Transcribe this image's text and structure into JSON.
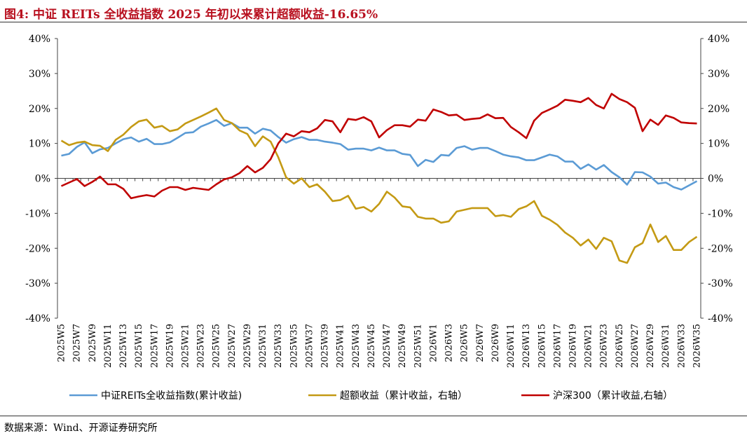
{
  "header": {
    "title": "图4:  中证 REITs 全收益指数 2025 年初以来累计超额收益-16.65%"
  },
  "footer": {
    "source": "数据来源：Wind、开源证券研究所"
  },
  "chart_data": {
    "type": "line",
    "title": "图4:  中证 REITs 全收益指数 2025 年初以来累计超额收益-16.65%",
    "x": [
      "2025W5",
      "2025W6",
      "2025W7",
      "2025W8",
      "2025W9",
      "2025W10",
      "2025W11",
      "2025W12",
      "2025W13",
      "2025W14",
      "2025W15",
      "2025W16",
      "2025W17",
      "2025W18",
      "2025W19",
      "2025W20",
      "2025W21",
      "2025W22",
      "2025W23",
      "2025W24",
      "2025W25",
      "2025W26",
      "2025W27",
      "2025W28",
      "2025W29",
      "2025W30",
      "2025W31",
      "2025W32",
      "2025W33",
      "2025W34",
      "2025W35",
      "2025W36",
      "2025W37",
      "2025W38",
      "2025W39",
      "2025W40",
      "2025W41",
      "2025W42",
      "2025W43",
      "2025W44",
      "2025W45",
      "2025W46",
      "2025W47",
      "2025W48",
      "2025W49",
      "2025W50",
      "2025W51",
      "2025W52",
      "2026W1",
      "2026W2",
      "2026W3",
      "2026W4",
      "2026W5",
      "2026W6",
      "2026W7",
      "2026W8",
      "2026W9",
      "2026W10",
      "2026W11",
      "2026W12",
      "2026W13",
      "2026W14",
      "2026W15",
      "2026W16",
      "2026W17",
      "2026W18",
      "2026W19",
      "2026W20",
      "2026W21",
      "2026W22",
      "2026W23",
      "2026W24",
      "2026W25",
      "2026W26",
      "2026W27",
      "2026W28",
      "2026W29",
      "2026W30",
      "2026W31",
      "2026W32",
      "2026W33",
      "2026W34",
      "2026W35"
    ],
    "x_tick_labels": [
      "2025W5",
      "2025W7",
      "2025W9",
      "2025W11",
      "2025W13",
      "2025W15",
      "2025W17",
      "2025W19",
      "2025W21",
      "2025W23",
      "2025W25",
      "2025W27",
      "2025W29",
      "2025W31",
      "2025W33",
      "2025W35",
      "2025W37",
      "2025W39",
      "2025W41",
      "2025W43",
      "2025W45",
      "2025W47",
      "2025W49",
      "2025W51",
      "2026W1",
      "2026W3",
      "2026W5",
      "2026W7",
      "2026W9",
      "2026W11",
      "2026W13",
      "2026W15",
      "2026W17",
      "2026W19",
      "2026W21",
      "2026W23",
      "2026W25",
      "2026W27",
      "2026W29",
      "2026W31",
      "2026W33",
      "2026W35"
    ],
    "y_left": {
      "ticks": [
        "40%",
        "30%",
        "20%",
        "10%",
        "0%",
        "-10%",
        "-20%",
        "-30%",
        "-40%"
      ],
      "ylim": [
        -40,
        40
      ]
    },
    "y_right": {
      "ticks": [
        "40%",
        "30%",
        "20%",
        "10%",
        "0%",
        "-10%",
        "-20%",
        "-30%",
        "-40%"
      ],
      "ylim": [
        -40,
        40
      ]
    },
    "grid": false,
    "legend": "bottom",
    "series": [
      {
        "name": "中证REITs全收益指数(累计收益)",
        "color": "#5b9bd5",
        "axis": "left",
        "values": [
          6.5,
          7.0,
          9.0,
          10.3,
          7.2,
          8.3,
          8.7,
          10.0,
          11.2,
          11.7,
          10.5,
          11.3,
          9.8,
          9.8,
          10.3,
          11.6,
          13.0,
          13.2,
          14.8,
          15.7,
          16.7,
          15.0,
          15.8,
          14.5,
          14.5,
          12.8,
          14.2,
          13.7,
          11.8,
          10.2,
          11.2,
          11.8,
          11.0,
          11.0,
          10.5,
          10.2,
          9.8,
          8.2,
          8.5,
          8.5,
          8.0,
          8.8,
          8.0,
          8.0,
          7.0,
          6.7,
          3.5,
          5.3,
          4.7,
          6.7,
          6.5,
          8.7,
          9.2,
          8.2,
          8.7,
          8.7,
          7.8,
          6.8,
          6.3,
          6.0,
          5.2,
          5.2,
          6.0,
          6.8,
          6.3,
          4.8,
          4.8,
          2.7,
          4.0,
          2.5,
          3.8,
          1.8,
          0.3,
          -1.8,
          1.8,
          1.7,
          0.5,
          -1.5,
          -1.2,
          -2.5,
          -3.2,
          -2.0,
          -0.8
        ]
      },
      {
        "name": "超额收益（累计收益，右轴）",
        "color": "#c49a14",
        "axis": "right",
        "values": [
          10.8,
          9.5,
          10.2,
          10.5,
          9.5,
          9.3,
          7.8,
          11.0,
          12.5,
          14.7,
          16.3,
          16.8,
          14.5,
          15.0,
          13.5,
          14.0,
          15.7,
          16.7,
          17.7,
          18.8,
          20.0,
          16.7,
          15.8,
          13.7,
          12.7,
          9.2,
          12.0,
          10.5,
          6.0,
          0.3,
          -1.5,
          0.0,
          -2.5,
          -1.7,
          -3.8,
          -6.5,
          -6.2,
          -5.0,
          -8.7,
          -8.2,
          -9.5,
          -7.3,
          -3.8,
          -5.5,
          -8.0,
          -8.3,
          -11.0,
          -11.5,
          -11.5,
          -12.7,
          -12.3,
          -9.5,
          -9.0,
          -8.5,
          -8.5,
          -8.5,
          -10.8,
          -10.5,
          -11.0,
          -8.8,
          -8.0,
          -6.5,
          -10.7,
          -11.8,
          -13.3,
          -15.5,
          -17.0,
          -19.2,
          -17.5,
          -20.2,
          -17.0,
          -18.0,
          -23.5,
          -24.2,
          -19.7,
          -18.5,
          -13.2,
          -18.2,
          -16.5,
          -20.5,
          -20.5,
          -18.2,
          -16.7
        ]
      },
      {
        "name": "沪深300（累计收益,右轴）",
        "color": "#c00000",
        "axis": "right",
        "values": [
          -2.2,
          -1.2,
          -0.2,
          -2.2,
          -1.0,
          0.5,
          -1.7,
          -1.7,
          -3.0,
          -5.7,
          -5.2,
          -4.8,
          -5.2,
          -3.5,
          -2.5,
          -2.5,
          -3.3,
          -2.7,
          -3.0,
          -3.3,
          -1.7,
          -0.3,
          0.3,
          1.5,
          3.5,
          1.7,
          3.0,
          5.5,
          10.0,
          12.8,
          12.0,
          13.5,
          13.2,
          14.3,
          16.7,
          16.3,
          13.2,
          17.0,
          16.7,
          17.5,
          16.3,
          11.7,
          13.8,
          15.2,
          15.2,
          14.8,
          16.8,
          16.5,
          19.7,
          19.0,
          18.0,
          18.2,
          16.7,
          17.0,
          17.2,
          18.3,
          17.2,
          17.3,
          14.7,
          13.2,
          11.5,
          16.5,
          18.7,
          19.7,
          20.8,
          22.5,
          22.2,
          21.8,
          23.0,
          21.0,
          20.0,
          24.2,
          22.7,
          21.8,
          20.2,
          13.5,
          16.8,
          15.3,
          18.0,
          17.3,
          16.0,
          15.8,
          15.7
        ]
      }
    ]
  }
}
